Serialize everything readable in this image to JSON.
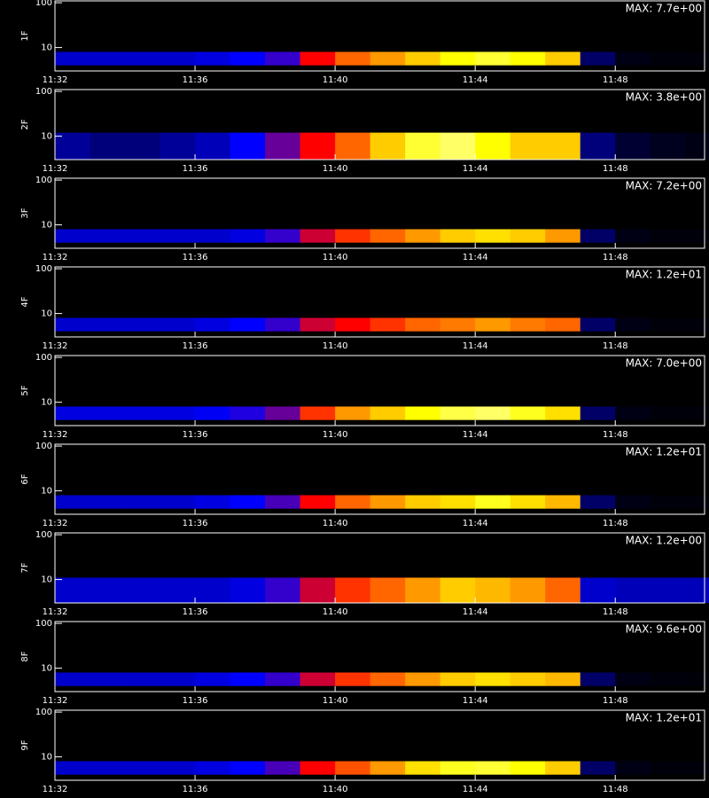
{
  "colormap": [
    "#000000",
    "#0000ff",
    "#ff0000",
    "#ffff00",
    "#ffffff"
  ],
  "chart_data": [
    {
      "type": "spectrogram",
      "y_label": "1F",
      "annotation": "MAX: 7.7e+00",
      "log_y": true,
      "band": [
        4,
        8
      ],
      "x": [
        0.5,
        1.5,
        2.5,
        3.5,
        4.5,
        5.5,
        6.5,
        7.5,
        8.5,
        9.5,
        10.5,
        11.5,
        12.5,
        13.5,
        14.5,
        15.5,
        16.5,
        17.5,
        18.5
      ],
      "values": [
        0.2,
        0.2,
        0.2,
        0.2,
        0.22,
        0.25,
        0.3,
        0.5,
        0.6,
        0.65,
        0.7,
        0.75,
        0.8,
        0.75,
        0.7,
        0.1,
        0.02,
        0.01,
        0.01
      ],
      "xlim": [
        0,
        18.55
      ],
      "ylim": [
        3,
        110
      ],
      "xticks": [
        {
          "value": 0,
          "label": "11:32"
        },
        {
          "value": 4,
          "label": "11:36"
        },
        {
          "value": 8,
          "label": "11:40"
        },
        {
          "value": 12,
          "label": "11:44"
        },
        {
          "value": 16,
          "label": "11:48"
        }
      ],
      "yticks": [
        10,
        100
      ]
    },
    {
      "type": "spectrogram",
      "y_label": "2F",
      "annotation": "MAX: 3.8e+00",
      "log_y": true,
      "band": [
        3,
        12
      ],
      "x": [
        0.5,
        1.5,
        2.5,
        3.5,
        4.5,
        5.5,
        6.5,
        7.5,
        8.5,
        9.5,
        10.5,
        11.5,
        12.5,
        13.5,
        14.5,
        15.5,
        16.5,
        17.5,
        18.5
      ],
      "values": [
        0.15,
        0.12,
        0.12,
        0.15,
        0.18,
        0.25,
        0.35,
        0.5,
        0.6,
        0.7,
        0.8,
        0.85,
        0.75,
        0.7,
        0.7,
        0.12,
        0.05,
        0.03,
        0.02
      ],
      "xlim": [
        0,
        18.55
      ],
      "ylim": [
        3,
        110
      ],
      "xticks": [
        {
          "value": 0,
          "label": "11:32"
        },
        {
          "value": 4,
          "label": "11:36"
        },
        {
          "value": 8,
          "label": "11:40"
        },
        {
          "value": 12,
          "label": "11:44"
        },
        {
          "value": 16,
          "label": "11:48"
        }
      ],
      "yticks": [
        10,
        100
      ]
    },
    {
      "type": "spectrogram",
      "y_label": "3F",
      "annotation": "MAX: 7.2e+00",
      "log_y": true,
      "band": [
        4,
        8
      ],
      "x": [
        0.5,
        1.5,
        2.5,
        3.5,
        4.5,
        5.5,
        6.5,
        7.5,
        8.5,
        9.5,
        10.5,
        11.5,
        12.5,
        13.5,
        14.5,
        15.5,
        16.5,
        17.5,
        18.5
      ],
      "values": [
        0.2,
        0.2,
        0.2,
        0.2,
        0.2,
        0.22,
        0.3,
        0.45,
        0.55,
        0.6,
        0.65,
        0.7,
        0.72,
        0.7,
        0.65,
        0.1,
        0.02,
        0.01,
        0.01
      ],
      "xlim": [
        0,
        18.55
      ],
      "ylim": [
        3,
        110
      ],
      "xticks": [
        {
          "value": 0,
          "label": "11:32"
        },
        {
          "value": 4,
          "label": "11:36"
        },
        {
          "value": 8,
          "label": "11:40"
        },
        {
          "value": 12,
          "label": "11:44"
        },
        {
          "value": 16,
          "label": "11:48"
        }
      ],
      "yticks": [
        10,
        100
      ]
    },
    {
      "type": "spectrogram",
      "y_label": "4F",
      "annotation": "MAX: 1.2e+01",
      "log_y": true,
      "band": [
        4,
        8
      ],
      "x": [
        0.5,
        1.5,
        2.5,
        3.5,
        4.5,
        5.5,
        6.5,
        7.5,
        8.5,
        9.5,
        10.5,
        11.5,
        12.5,
        13.5,
        14.5,
        15.5,
        16.5,
        17.5,
        18.5
      ],
      "values": [
        0.2,
        0.2,
        0.2,
        0.2,
        0.22,
        0.25,
        0.3,
        0.45,
        0.5,
        0.55,
        0.6,
        0.62,
        0.65,
        0.62,
        0.6,
        0.1,
        0.02,
        0.01,
        0.01
      ],
      "xlim": [
        0,
        18.55
      ],
      "ylim": [
        3,
        110
      ],
      "xticks": [
        {
          "value": 0,
          "label": "11:32"
        },
        {
          "value": 4,
          "label": "11:36"
        },
        {
          "value": 8,
          "label": "11:40"
        },
        {
          "value": 12,
          "label": "11:44"
        },
        {
          "value": 16,
          "label": "11:48"
        }
      ],
      "yticks": [
        10,
        100
      ]
    },
    {
      "type": "spectrogram",
      "y_label": "5F",
      "annotation": "MAX: 7.0e+00",
      "log_y": true,
      "band": [
        4,
        8
      ],
      "x": [
        0.5,
        1.5,
        2.5,
        3.5,
        4.5,
        5.5,
        6.5,
        7.5,
        8.5,
        9.5,
        10.5,
        11.5,
        12.5,
        13.5,
        14.5,
        15.5,
        16.5,
        17.5,
        18.5
      ],
      "values": [
        0.22,
        0.22,
        0.22,
        0.22,
        0.24,
        0.28,
        0.35,
        0.55,
        0.65,
        0.7,
        0.75,
        0.82,
        0.85,
        0.78,
        0.72,
        0.1,
        0.02,
        0.01,
        0.01
      ],
      "xlim": [
        0,
        18.55
      ],
      "ylim": [
        3,
        110
      ],
      "xticks": [
        {
          "value": 0,
          "label": "11:32"
        },
        {
          "value": 4,
          "label": "11:36"
        },
        {
          "value": 8,
          "label": "11:40"
        },
        {
          "value": 12,
          "label": "11:44"
        },
        {
          "value": 16,
          "label": "11:48"
        }
      ],
      "yticks": [
        10,
        100
      ]
    },
    {
      "type": "spectrogram",
      "y_label": "6F",
      "annotation": "MAX: 1.2e+01",
      "log_y": true,
      "band": [
        4,
        8
      ],
      "x": [
        0.5,
        1.5,
        2.5,
        3.5,
        4.5,
        5.5,
        6.5,
        7.5,
        8.5,
        9.5,
        10.5,
        11.5,
        12.5,
        13.5,
        14.5,
        15.5,
        16.5,
        17.5,
        18.5
      ],
      "values": [
        0.2,
        0.2,
        0.2,
        0.2,
        0.22,
        0.25,
        0.32,
        0.5,
        0.6,
        0.65,
        0.7,
        0.72,
        0.78,
        0.72,
        0.68,
        0.1,
        0.02,
        0.01,
        0.01
      ],
      "xlim": [
        0,
        18.55
      ],
      "ylim": [
        3,
        110
      ],
      "xticks": [
        {
          "value": 0,
          "label": "11:32"
        },
        {
          "value": 4,
          "label": "11:36"
        },
        {
          "value": 8,
          "label": "11:40"
        },
        {
          "value": 12,
          "label": "11:44"
        },
        {
          "value": 16,
          "label": "11:48"
        }
      ],
      "yticks": [
        10,
        100
      ]
    },
    {
      "type": "spectrogram",
      "y_label": "7F",
      "annotation": "MAX: 1.2e+00",
      "log_y": true,
      "band": [
        3,
        11
      ],
      "x": [
        0.5,
        1.5,
        2.5,
        3.5,
        4.5,
        5.5,
        6.5,
        7.5,
        8.5,
        9.5,
        10.5,
        11.5,
        12.5,
        13.5,
        14.5,
        15.5,
        16.5,
        17.5,
        18.5
      ],
      "values": [
        0.2,
        0.2,
        0.2,
        0.2,
        0.2,
        0.22,
        0.3,
        0.45,
        0.55,
        0.6,
        0.65,
        0.7,
        0.68,
        0.65,
        0.6,
        0.2,
        0.18,
        0.18,
        0.18
      ],
      "xlim": [
        0,
        18.55
      ],
      "ylim": [
        3,
        110
      ],
      "xticks": [
        {
          "value": 0,
          "label": "11:32"
        },
        {
          "value": 4,
          "label": "11:36"
        },
        {
          "value": 8,
          "label": "11:40"
        },
        {
          "value": 12,
          "label": "11:44"
        },
        {
          "value": 16,
          "label": "11:48"
        }
      ],
      "yticks": [
        10,
        100
      ]
    },
    {
      "type": "spectrogram",
      "y_label": "8F",
      "annotation": "MAX: 9.6e+00",
      "log_y": true,
      "band": [
        4,
        8
      ],
      "x": [
        0.5,
        1.5,
        2.5,
        3.5,
        4.5,
        5.5,
        6.5,
        7.5,
        8.5,
        9.5,
        10.5,
        11.5,
        12.5,
        13.5,
        14.5,
        15.5,
        16.5,
        17.5,
        18.5
      ],
      "values": [
        0.2,
        0.2,
        0.2,
        0.2,
        0.22,
        0.25,
        0.3,
        0.45,
        0.55,
        0.6,
        0.65,
        0.7,
        0.72,
        0.7,
        0.68,
        0.1,
        0.02,
        0.01,
        0.01
      ],
      "xlim": [
        0,
        18.55
      ],
      "ylim": [
        3,
        110
      ],
      "xticks": [
        {
          "value": 0,
          "label": "11:32"
        },
        {
          "value": 4,
          "label": "11:36"
        },
        {
          "value": 8,
          "label": "11:40"
        },
        {
          "value": 12,
          "label": "11:44"
        },
        {
          "value": 16,
          "label": "11:48"
        }
      ],
      "yticks": [
        10,
        100
      ]
    },
    {
      "type": "spectrogram",
      "y_label": "9F",
      "annotation": "MAX: 1.2e+01",
      "log_y": true,
      "band": [
        4,
        8
      ],
      "x": [
        0.5,
        1.5,
        2.5,
        3.5,
        4.5,
        5.5,
        6.5,
        7.5,
        8.5,
        9.5,
        10.5,
        11.5,
        12.5,
        13.5,
        14.5,
        15.5,
        16.5,
        17.5,
        18.5
      ],
      "values": [
        0.2,
        0.2,
        0.2,
        0.2,
        0.22,
        0.25,
        0.32,
        0.5,
        0.58,
        0.65,
        0.72,
        0.78,
        0.8,
        0.75,
        0.7,
        0.1,
        0.02,
        0.01,
        0.01
      ],
      "xlim": [
        0,
        18.55
      ],
      "ylim": [
        3,
        110
      ],
      "xticks": [
        {
          "value": 0,
          "label": "11:32"
        },
        {
          "value": 4,
          "label": "11:36"
        },
        {
          "value": 8,
          "label": "11:40"
        },
        {
          "value": 12,
          "label": "11:44"
        },
        {
          "value": 16,
          "label": "11:48"
        }
      ],
      "yticks": [
        10,
        100
      ]
    }
  ]
}
